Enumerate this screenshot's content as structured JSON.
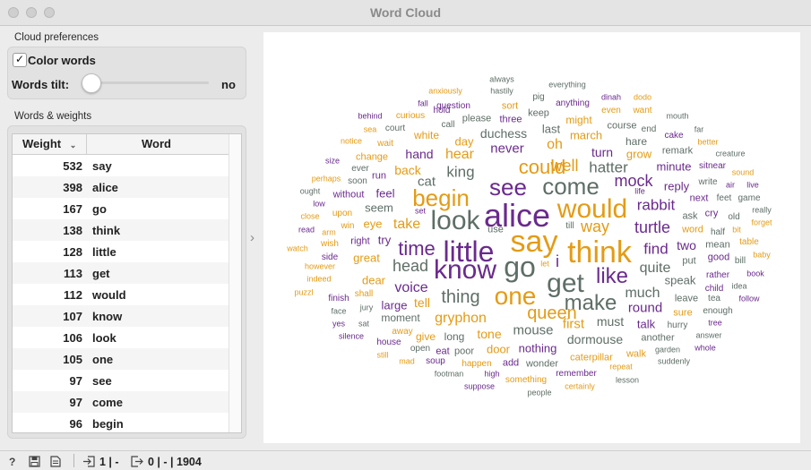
{
  "window": {
    "title": "Word Cloud"
  },
  "preferences": {
    "section_label": "Cloud preferences",
    "color_words_label": "Color words",
    "color_words_checked": true,
    "checkmark": "✓",
    "words_tilt_label": "Words tilt:",
    "words_tilt_value": "no"
  },
  "table": {
    "section_label": "Words & weights",
    "headers": {
      "weight": "Weight",
      "word": "Word"
    },
    "rows": [
      {
        "weight": "532",
        "word": "say"
      },
      {
        "weight": "398",
        "word": "alice"
      },
      {
        "weight": "167",
        "word": "go"
      },
      {
        "weight": "138",
        "word": "think"
      },
      {
        "weight": "128",
        "word": "little"
      },
      {
        "weight": "113",
        "word": "get"
      },
      {
        "weight": "112",
        "word": "would"
      },
      {
        "weight": "107",
        "word": "know"
      },
      {
        "weight": "106",
        "word": "look"
      },
      {
        "weight": "105",
        "word": "one"
      },
      {
        "weight": "97",
        "word": "see"
      },
      {
        "weight": "97",
        "word": "come"
      },
      {
        "weight": "96",
        "word": "begin"
      }
    ]
  },
  "colors": {
    "purple": "#6a2a8d",
    "orange": "#e49b16",
    "gray": "#5e6e66"
  },
  "cloud_words": [
    {
      "t": "alice",
      "c": "purple",
      "s": 36
    },
    {
      "t": "say",
      "c": "orange",
      "s": 34
    },
    {
      "t": "think",
      "c": "orange",
      "s": 34
    },
    {
      "t": "little",
      "c": "purple",
      "s": 32
    },
    {
      "t": "go",
      "c": "gray",
      "s": 32
    },
    {
      "t": "know",
      "c": "purple",
      "s": 30
    },
    {
      "t": "get",
      "c": "gray",
      "s": 30
    },
    {
      "t": "would",
      "c": "orange",
      "s": 30
    },
    {
      "t": "look",
      "c": "gray",
      "s": 30
    },
    {
      "t": "one",
      "c": "orange",
      "s": 28
    },
    {
      "t": "see",
      "c": "purple",
      "s": 26
    },
    {
      "t": "come",
      "c": "gray",
      "s": 26
    },
    {
      "t": "begin",
      "c": "orange",
      "s": 26
    },
    {
      "t": "like",
      "c": "purple",
      "s": 24
    },
    {
      "t": "make",
      "c": "gray",
      "s": 24
    },
    {
      "t": "time",
      "c": "purple",
      "s": 22
    },
    {
      "t": "could",
      "c": "orange",
      "s": 22
    },
    {
      "t": "queen",
      "c": "orange",
      "s": 20
    },
    {
      "t": "thing",
      "c": "gray",
      "s": 20
    },
    {
      "t": "head",
      "c": "gray",
      "s": 18
    },
    {
      "t": "way",
      "c": "orange",
      "s": 18
    },
    {
      "t": "turtle",
      "c": "purple",
      "s": 18
    },
    {
      "t": "well",
      "c": "orange",
      "s": 18
    },
    {
      "t": "hatter",
      "c": "gray",
      "s": 17
    },
    {
      "t": "mock",
      "c": "purple",
      "s": 18
    },
    {
      "t": "rabbit",
      "c": "purple",
      "s": 17
    },
    {
      "t": "find",
      "c": "purple",
      "s": 17
    },
    {
      "t": "gryphon",
      "c": "orange",
      "s": 16
    },
    {
      "t": "voice",
      "c": "purple",
      "s": 16
    },
    {
      "t": "take",
      "c": "orange",
      "s": 16
    },
    {
      "t": "much",
      "c": "gray",
      "s": 16
    },
    {
      "t": "quite",
      "c": "gray",
      "s": 16
    },
    {
      "t": "king",
      "c": "gray",
      "s": 17
    },
    {
      "t": "hear",
      "c": "orange",
      "s": 16
    },
    {
      "t": "mouse",
      "c": "gray",
      "s": 15
    },
    {
      "t": "oh",
      "c": "orange",
      "s": 16
    },
    {
      "t": "cat",
      "c": "gray",
      "s": 15
    },
    {
      "t": "round",
      "c": "purple",
      "s": 15
    },
    {
      "t": "first",
      "c": "orange",
      "s": 15
    },
    {
      "t": "back",
      "c": "orange",
      "s": 14
    },
    {
      "t": "turn",
      "c": "purple",
      "s": 14
    },
    {
      "t": "never",
      "c": "purple",
      "s": 15
    },
    {
      "t": "dormouse",
      "c": "gray",
      "s": 14
    },
    {
      "t": "must",
      "c": "gray",
      "s": 14
    },
    {
      "t": "tone",
      "c": "orange",
      "s": 14
    },
    {
      "t": "two",
      "c": "purple",
      "s": 14
    },
    {
      "t": "seem",
      "c": "gray",
      "s": 13
    },
    {
      "t": "eye",
      "c": "orange",
      "s": 13
    },
    {
      "t": "hand",
      "c": "purple",
      "s": 14
    },
    {
      "t": "tell",
      "c": "orange",
      "s": 14
    },
    {
      "t": "large",
      "c": "purple",
      "s": 13
    },
    {
      "t": "dear",
      "c": "orange",
      "s": 13
    },
    {
      "t": "great",
      "c": "orange",
      "s": 13
    },
    {
      "t": "try",
      "c": "purple",
      "s": 13
    },
    {
      "t": "feel",
      "c": "purple",
      "s": 13
    },
    {
      "t": "day",
      "c": "orange",
      "s": 13
    },
    {
      "t": "duchess",
      "c": "gray",
      "s": 14
    },
    {
      "t": "last",
      "c": "gray",
      "s": 13
    },
    {
      "t": "march",
      "c": "orange",
      "s": 13
    },
    {
      "t": "minute",
      "c": "purple",
      "s": 13
    },
    {
      "t": "reply",
      "c": "purple",
      "s": 13
    },
    {
      "t": "grow",
      "c": "orange",
      "s": 13
    },
    {
      "t": "hare",
      "c": "gray",
      "s": 12
    },
    {
      "t": "speak",
      "c": "gray",
      "s": 13
    },
    {
      "t": "talk",
      "c": "purple",
      "s": 13
    },
    {
      "t": "nothing",
      "c": "purple",
      "s": 13
    },
    {
      "t": "door",
      "c": "orange",
      "s": 13
    },
    {
      "t": "moment",
      "c": "gray",
      "s": 12
    },
    {
      "t": "long",
      "c": "gray",
      "s": 12
    },
    {
      "t": "give",
      "c": "orange",
      "s": 12
    },
    {
      "t": "white",
      "c": "orange",
      "s": 12
    },
    {
      "t": "might",
      "c": "orange",
      "s": 12
    },
    {
      "t": "three",
      "c": "purple",
      "s": 11
    },
    {
      "t": "caterpillar",
      "c": "orange",
      "s": 11
    },
    {
      "t": "change",
      "c": "orange",
      "s": 11
    },
    {
      "t": "course",
      "c": "gray",
      "s": 11
    },
    {
      "t": "word",
      "c": "orange",
      "s": 11
    },
    {
      "t": "ask",
      "c": "gray",
      "s": 11
    },
    {
      "t": "cry",
      "c": "purple",
      "s": 11
    },
    {
      "t": "put",
      "c": "gray",
      "s": 11
    },
    {
      "t": "mean",
      "c": "gray",
      "s": 11
    },
    {
      "t": "leave",
      "c": "gray",
      "s": 11
    },
    {
      "t": "sure",
      "c": "orange",
      "s": 11
    },
    {
      "t": "another",
      "c": "gray",
      "s": 11
    },
    {
      "t": "walk",
      "c": "orange",
      "s": 11
    },
    {
      "t": "wonder",
      "c": "gray",
      "s": 11
    },
    {
      "t": "happen",
      "c": "orange",
      "s": 10
    },
    {
      "t": "add",
      "c": "purple",
      "s": 11
    },
    {
      "t": "remember",
      "c": "purple",
      "s": 10
    },
    {
      "t": "something",
      "c": "orange",
      "s": 10
    },
    {
      "t": "eat",
      "c": "purple",
      "s": 11
    },
    {
      "t": "poor",
      "c": "gray",
      "s": 11
    },
    {
      "t": "open",
      "c": "gray",
      "s": 10
    },
    {
      "t": "soup",
      "c": "purple",
      "s": 10
    },
    {
      "t": "away",
      "c": "orange",
      "s": 10
    },
    {
      "t": "house",
      "c": "purple",
      "s": 10
    },
    {
      "t": "shall",
      "c": "orange",
      "s": 10
    },
    {
      "t": "finish",
      "c": "purple",
      "s": 10
    },
    {
      "t": "right",
      "c": "purple",
      "s": 11
    },
    {
      "t": "upon",
      "c": "orange",
      "s": 10
    },
    {
      "t": "win",
      "c": "orange",
      "s": 10
    },
    {
      "t": "wish",
      "c": "orange",
      "s": 10
    },
    {
      "t": "side",
      "c": "purple",
      "s": 10
    },
    {
      "t": "however",
      "c": "orange",
      "s": 9
    },
    {
      "t": "indeed",
      "c": "orange",
      "s": 9
    },
    {
      "t": "without",
      "c": "purple",
      "s": 11
    },
    {
      "t": "run",
      "c": "purple",
      "s": 11
    },
    {
      "t": "soon",
      "c": "gray",
      "s": 10
    },
    {
      "t": "perhaps",
      "c": "orange",
      "s": 9
    },
    {
      "t": "ever",
      "c": "gray",
      "s": 10
    },
    {
      "t": "wait",
      "c": "orange",
      "s": 10
    },
    {
      "t": "court",
      "c": "gray",
      "s": 10
    },
    {
      "t": "call",
      "c": "gray",
      "s": 10
    },
    {
      "t": "please",
      "c": "gray",
      "s": 11
    },
    {
      "t": "question",
      "c": "purple",
      "s": 10
    },
    {
      "t": "hold",
      "c": "purple",
      "s": 10
    },
    {
      "t": "curious",
      "c": "orange",
      "s": 10
    },
    {
      "t": "keep",
      "c": "gray",
      "s": 11
    },
    {
      "t": "sort",
      "c": "orange",
      "s": 11
    },
    {
      "t": "anything",
      "c": "purple",
      "s": 10
    },
    {
      "t": "even",
      "c": "orange",
      "s": 10
    },
    {
      "t": "want",
      "c": "orange",
      "s": 10
    },
    {
      "t": "end",
      "c": "gray",
      "s": 10
    },
    {
      "t": "cake",
      "c": "purple",
      "s": 10
    },
    {
      "t": "remark",
      "c": "gray",
      "s": 11
    },
    {
      "t": "sitnear",
      "c": "purple",
      "s": 10
    },
    {
      "t": "write",
      "c": "gray",
      "s": 10
    },
    {
      "t": "next",
      "c": "purple",
      "s": 11
    },
    {
      "t": "feet",
      "c": "gray",
      "s": 10
    },
    {
      "t": "game",
      "c": "gray",
      "s": 10
    },
    {
      "t": "old",
      "c": "gray",
      "s": 10
    },
    {
      "t": "half",
      "c": "gray",
      "s": 10
    },
    {
      "t": "good",
      "c": "purple",
      "s": 11
    },
    {
      "t": "bill",
      "c": "gray",
      "s": 10
    },
    {
      "t": "rather",
      "c": "purple",
      "s": 10
    },
    {
      "t": "child",
      "c": "purple",
      "s": 10
    },
    {
      "t": "tea",
      "c": "gray",
      "s": 10
    },
    {
      "t": "enough",
      "c": "gray",
      "s": 10
    },
    {
      "t": "hurry",
      "c": "gray",
      "s": 10
    },
    {
      "t": "garden",
      "c": "gray",
      "s": 9
    },
    {
      "t": "answer",
      "c": "gray",
      "s": 9
    },
    {
      "t": "whole",
      "c": "purple",
      "s": 9
    },
    {
      "t": "tree",
      "c": "purple",
      "s": 9
    },
    {
      "t": "suddenly",
      "c": "gray",
      "s": 9
    },
    {
      "t": "repeat",
      "c": "orange",
      "s": 9
    },
    {
      "t": "lesson",
      "c": "gray",
      "s": 9
    },
    {
      "t": "certainly",
      "c": "orange",
      "s": 9
    },
    {
      "t": "people",
      "c": "gray",
      "s": 9
    },
    {
      "t": "suppose",
      "c": "purple",
      "s": 9
    },
    {
      "t": "high",
      "c": "purple",
      "s": 9
    },
    {
      "t": "footman",
      "c": "gray",
      "s": 9
    },
    {
      "t": "mad",
      "c": "orange",
      "s": 9
    },
    {
      "t": "still",
      "c": "orange",
      "s": 9
    },
    {
      "t": "silence",
      "c": "purple",
      "s": 9
    },
    {
      "t": "yes",
      "c": "purple",
      "s": 9
    },
    {
      "t": "sat",
      "c": "gray",
      "s": 9
    },
    {
      "t": "face",
      "c": "gray",
      "s": 9
    },
    {
      "t": "jury",
      "c": "gray",
      "s": 9
    },
    {
      "t": "puzzl",
      "c": "orange",
      "s": 9
    },
    {
      "t": "watch",
      "c": "orange",
      "s": 9
    },
    {
      "t": "read",
      "c": "purple",
      "s": 9
    },
    {
      "t": "arm",
      "c": "orange",
      "s": 9
    },
    {
      "t": "close",
      "c": "orange",
      "s": 9
    },
    {
      "t": "low",
      "c": "purple",
      "s": 9
    },
    {
      "t": "ought",
      "c": "gray",
      "s": 9
    },
    {
      "t": "size",
      "c": "purple",
      "s": 9
    },
    {
      "t": "notice",
      "c": "orange",
      "s": 9
    },
    {
      "t": "behind",
      "c": "purple",
      "s": 9
    },
    {
      "t": "sea",
      "c": "orange",
      "s": 9
    },
    {
      "t": "fall",
      "c": "purple",
      "s": 9
    },
    {
      "t": "anxiously",
      "c": "orange",
      "s": 9
    },
    {
      "t": "always",
      "c": "gray",
      "s": 9
    },
    {
      "t": "hastily",
      "c": "gray",
      "s": 9
    },
    {
      "t": "pig",
      "c": "gray",
      "s": 10
    },
    {
      "t": "everything",
      "c": "gray",
      "s": 9
    },
    {
      "t": "dinah",
      "c": "purple",
      "s": 9
    },
    {
      "t": "dodo",
      "c": "orange",
      "s": 9
    },
    {
      "t": "mouth",
      "c": "gray",
      "s": 9
    },
    {
      "t": "far",
      "c": "gray",
      "s": 9
    },
    {
      "t": "better",
      "c": "orange",
      "s": 9
    },
    {
      "t": "creature",
      "c": "gray",
      "s": 9
    },
    {
      "t": "sound",
      "c": "orange",
      "s": 9
    },
    {
      "t": "air",
      "c": "purple",
      "s": 9
    },
    {
      "t": "live",
      "c": "purple",
      "s": 9
    },
    {
      "t": "really",
      "c": "gray",
      "s": 9
    },
    {
      "t": "forget",
      "c": "orange",
      "s": 9
    },
    {
      "t": "bit",
      "c": "orange",
      "s": 9
    },
    {
      "t": "table",
      "c": "orange",
      "s": 10
    },
    {
      "t": "baby",
      "c": "orange",
      "s": 9
    },
    {
      "t": "book",
      "c": "purple",
      "s": 9
    },
    {
      "t": "idea",
      "c": "gray",
      "s": 9
    },
    {
      "t": "follow",
      "c": "purple",
      "s": 9
    },
    {
      "t": "life",
      "c": "purple",
      "s": 9
    },
    {
      "t": "set",
      "c": "purple",
      "s": 9
    },
    {
      "t": "use",
      "c": "gray",
      "s": 11
    },
    {
      "t": "till",
      "c": "gray",
      "s": 10
    },
    {
      "t": "let",
      "c": "orange",
      "s": 9
    },
    {
      "t": "i",
      "c": "purple",
      "s": 18
    }
  ],
  "statusbar": {
    "help_icon": "?",
    "in_text": "1 | -",
    "out_text": "0 | - | 1904"
  }
}
